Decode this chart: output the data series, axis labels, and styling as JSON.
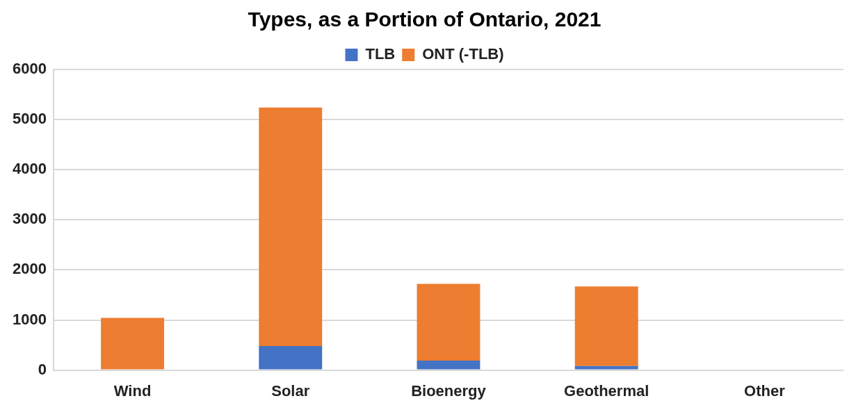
{
  "chart_data": {
    "type": "bar",
    "title": "Types, as a Portion of Ontario, 2021",
    "stacked": true,
    "categories": [
      "Wind",
      "Solar",
      "Bioenergy",
      "Geothermal",
      "Other"
    ],
    "series": [
      {
        "name": "TLB",
        "color": "#4472c4",
        "values": [
          0,
          480,
          190,
          80,
          0
        ]
      },
      {
        "name": "ONT (-TLB)",
        "color": "#ed7d31",
        "values": [
          1040,
          4760,
          1530,
          1590,
          0
        ]
      }
    ],
    "ylim": [
      0,
      6000
    ],
    "yticks": [
      0,
      1000,
      2000,
      3000,
      4000,
      5000,
      6000
    ],
    "grid": "y",
    "legend": "top"
  }
}
